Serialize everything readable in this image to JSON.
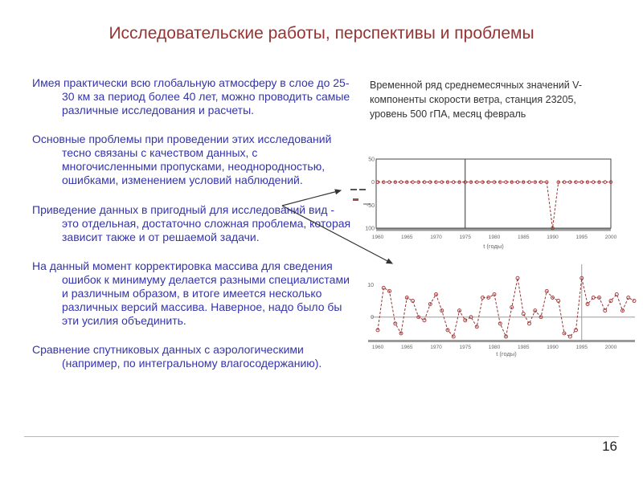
{
  "title": "Исследовательские работы, перспективы и проблемы",
  "page_number": "16",
  "paragraphs": [
    "Имея практически всю глобальную атмосферу в слое до 25-30 км за период более 40 лет, можно проводить самые различные исследования и расчеты.",
    "Основные проблемы при проведении этих исследований тесно связаны с качеством данных, с многочисленными пропусками, неоднородностью, ошибками, изменением условий наблюдений.",
    "Приведение данных в пригодный для исследований вид - это отдельная, достаточно сложная проблема, которая зависит также и от решаемой задачи.",
    "На данный момент корректировка массива для сведения ошибок к минимуму делается разными специалистами и различным образом, в итоге имеется несколько различных версий массива. Наверное, надо было бы эти усилия объединить.",
    "Сравнение спутниковых данных с аэрологическими (например, по интегральному влагосодержанию)."
  ],
  "chart_caption": "Временной ряд среднемесячных значений V-компоненты скорости ветра, станция 23205, уровень 500 гПА, месяц февраль",
  "colors": {
    "title": "#993333",
    "body_text": "#3434ad",
    "series": "#993333",
    "axis_gray": "#9a9a9a",
    "frame": "#444444",
    "tick_text": "#666666"
  },
  "chart_data": [
    {
      "type": "line",
      "name": "top-series-with-missing-value-spike",
      "x": [
        1960,
        1961,
        1962,
        1963,
        1964,
        1965,
        1966,
        1967,
        1968,
        1969,
        1970,
        1971,
        1972,
        1973,
        1974,
        1975,
        1976,
        1977,
        1978,
        1979,
        1980,
        1981,
        1982,
        1983,
        1984,
        1985,
        1986,
        1987,
        1988,
        1989,
        1990,
        1991,
        1992,
        1993,
        1994,
        1995,
        1996,
        1997,
        1998,
        1999,
        2000
      ],
      "values": [
        0,
        0,
        0,
        0,
        0,
        0,
        0,
        0,
        0,
        0,
        0,
        0,
        0,
        0,
        0,
        0,
        0,
        0,
        0,
        0,
        0,
        0,
        0,
        0,
        0,
        0,
        0,
        0,
        0,
        0,
        -100,
        0,
        0,
        0,
        0,
        0,
        0,
        0,
        0,
        0,
        0
      ],
      "xticks": [
        "1960",
        "1965",
        "1970",
        "1975",
        "1980",
        "1985",
        "1990",
        "1995",
        "2000"
      ],
      "yticks": [
        50,
        0,
        -50,
        -100
      ],
      "ylim": [
        -100,
        50
      ],
      "xlabel": "t (годы)",
      "vline_year": 1975,
      "line_style": "dashed",
      "marker": "circle",
      "frame": true,
      "legend_position": "none",
      "grid": false
    },
    {
      "type": "line",
      "name": "bottom-series-after-correction",
      "x": [
        1960,
        1961,
        1962,
        1963,
        1964,
        1965,
        1966,
        1967,
        1968,
        1969,
        1970,
        1971,
        1972,
        1973,
        1974,
        1975,
        1976,
        1977,
        1978,
        1979,
        1980,
        1981,
        1982,
        1983,
        1984,
        1985,
        1986,
        1987,
        1988,
        1989,
        1990,
        1991,
        1992,
        1993,
        1994,
        1995,
        1996,
        1997,
        1998,
        1999,
        2000,
        2001,
        2002,
        2003,
        2004
      ],
      "values": [
        -4,
        9,
        8,
        -2,
        -5,
        6,
        5,
        0,
        -1,
        4,
        7,
        2,
        -4,
        -6,
        2,
        -1,
        0,
        -3,
        6,
        6,
        7,
        -2,
        -6,
        3,
        12,
        1,
        -2,
        2,
        0,
        8,
        6,
        5,
        -5,
        -6,
        -4,
        12,
        4,
        6,
        6,
        2,
        5,
        7,
        2,
        6,
        5
      ],
      "xticks": [
        "1960",
        "1965",
        "1970",
        "1975",
        "1980",
        "1985",
        "1990",
        "1995",
        "2000"
      ],
      "yticks": [
        10,
        0
      ],
      "ylim": [
        -7,
        16
      ],
      "xlabel": "t (годы)",
      "vline_year": 1995,
      "zero_line": true,
      "line_style": "dashed",
      "marker": "circle",
      "frame": false,
      "legend_position": "none",
      "grid": false
    }
  ]
}
